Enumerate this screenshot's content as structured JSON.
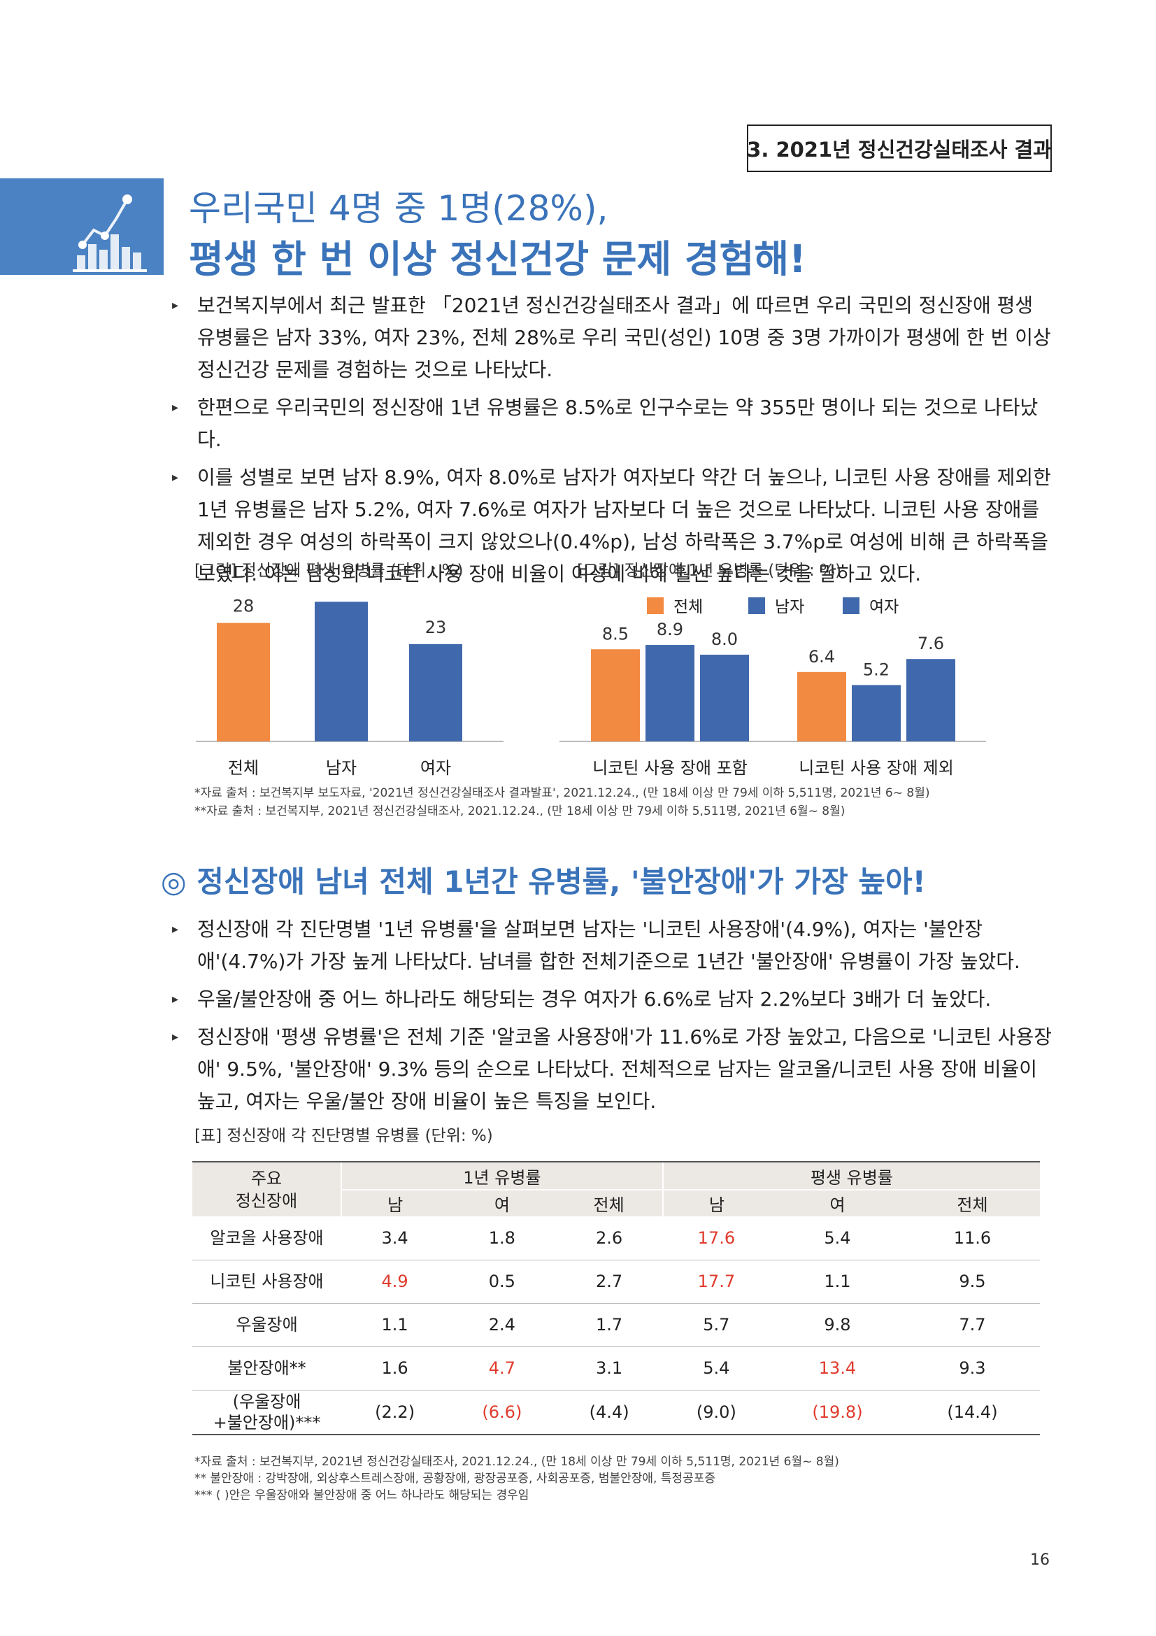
{
  "section_label": "3. 2021년 정신건강실태조사 결과",
  "title": {
    "line1": "우리국민 4명 중 1명(28%),",
    "line2": "평생 한 번 이상 정신건강 문제 경험해!"
  },
  "intro_bullets": [
    "보건복지부에서 최근 발표한 「2021년 정신건강실태조사 결과」에 따르면 우리 국민의 정신장애 평생 유병률은 남자 33%, 여자 23%, 전체 28%로 우리 국민(성인) 10명 중 3명 가까이가 평생에 한 번 이상 정신건강 문제를 경험하는 것으로 나타났다.",
    "한편으로 우리국민의 정신장애 1년 유병률은 8.5%로 인구수로는 약 355만 명이나 되는 것으로 나타났다.",
    "이를 성별로 보면 남자 8.9%, 여자 8.0%로 남자가 여자보다 약간 더 높으나, 니코틴 사용 장애를 제외한 1년 유병률은 남자 5.2%, 여자 7.6%로 여자가 남자보다 더 높은 것으로 나타났다. 니코틴 사용 장애를 제외한 경우 여성의 하락폭이 크지 않았으나(0.4%p), 남성 하락폭은 3.7%p로 여성에 비해 큰 하락폭을 보였다. 이는 남성의 니코틴 사용 장애 비율이 여성에 비해 훨씬 높다는 것을 말하고 있다."
  ],
  "chart_data": [
    {
      "type": "bar",
      "title": "[그림] 정신장애 평생 유병률 (단위 : %)",
      "categories": [
        "전체",
        "남자",
        "여자"
      ],
      "values": [
        28,
        33,
        23
      ],
      "colors": [
        "#f28a42",
        "#4069ad",
        "#4069ad"
      ]
    },
    {
      "type": "bar",
      "title": "[그림] 정신장애 1년 유병률 (단위 : %)",
      "categories": [
        "니코틴 사용 장애 포함",
        "니코틴 사용 장애 제외"
      ],
      "series": [
        {
          "name": "전체",
          "values": [
            8.5,
            6.4
          ],
          "color": "#f28a42"
        },
        {
          "name": "남자",
          "values": [
            8.9,
            5.2
          ],
          "color": "#4069ad"
        },
        {
          "name": "여자",
          "values": [
            8.0,
            7.6
          ],
          "color": "#4069ad"
        }
      ],
      "legend_placement": "top"
    }
  ],
  "chart_sources": [
    "*자료 출처 : 보건복지부 보도자료, '2021년 정신건강실태조사 결과발표', 2021.12.24., (만 18세 이상 만 79세 이하 5,511명, 2021년 6~ 8월)",
    "**자료 출처 : 보건복지부, 2021년 정신건강실태조사, 2021.12.24., (만 18세 이상 만 79세 이하 5,511명, 2021년 6월~ 8월)"
  ],
  "section2": {
    "symbol": "◎",
    "heading": "정신장애 남녀 전체 1년간 유병률, '불안장애'가 가장 높아!",
    "bullets": [
      "정신장애 각 진단명별 '1년 유병률'을 살펴보면 남자는 '니코틴 사용장애'(4.9%), 여자는 '불안장애'(4.7%)가 가장 높게 나타났다. 남녀를 합한 전체기준으로 1년간 '불안장애' 유병률이 가장 높았다.",
      "우울/불안장애 중 어느 하나라도 해당되는 경우 여자가 6.6%로 남자 2.2%보다 3배가 더 높았다.",
      "정신장애 '평생 유병률'은 전체 기준 '알코올 사용장애'가 11.6%로 가장 높았고, 다음으로 '니코틴 사용장애' 9.5%, '불안장애' 9.3% 등의 순으로 나타났다. 전체적으로 남자는 알코올/니코틴 사용 장애 비율이 높고, 여자는 우울/불안 장애 비율이 높은 특징을 보인다."
    ]
  },
  "table": {
    "caption": "[표] 정신장애 각 진단명별 유병률 (단위: %)",
    "corner_label": "주요\n정신장애",
    "group_headers": [
      "1년 유병률",
      "평생 유병률"
    ],
    "sub_headers": [
      "남",
      "여",
      "전체",
      "남",
      "여",
      "전체"
    ],
    "rows": [
      {
        "label": "알코올 사용장애",
        "values": [
          "3.4",
          "1.8",
          "2.6",
          "17.6",
          "5.4",
          "11.6"
        ],
        "highlight": [
          false,
          false,
          false,
          true,
          false,
          false
        ]
      },
      {
        "label": "니코틴 사용장애",
        "values": [
          "4.9",
          "0.5",
          "2.7",
          "17.7",
          "1.1",
          "9.5"
        ],
        "highlight": [
          true,
          false,
          false,
          true,
          false,
          false
        ]
      },
      {
        "label": "우울장애",
        "values": [
          "1.1",
          "2.4",
          "1.7",
          "5.7",
          "9.8",
          "7.7"
        ],
        "highlight": [
          false,
          false,
          false,
          false,
          false,
          false
        ]
      },
      {
        "label": "불안장애**",
        "values": [
          "1.6",
          "4.7",
          "3.1",
          "5.4",
          "13.4",
          "9.3"
        ],
        "highlight": [
          false,
          true,
          false,
          false,
          true,
          false
        ]
      },
      {
        "label": "(우울장애\n+불안장애)***",
        "values": [
          "(2.2)",
          "(6.6)",
          "(4.4)",
          "(9.0)",
          "(19.8)",
          "(14.4)"
        ],
        "highlight": [
          false,
          true,
          false,
          false,
          true,
          false
        ]
      }
    ],
    "highlight_color": "#e03b2d"
  },
  "table_notes": [
    "*자료 출처 : 보건복지부, 2021년 정신건강실태조사, 2021.12.24., (만 18세 이상 만 79세 이하 5,511명, 2021년 6월~ 8월)",
    "** 불안장애 : 강박장애, 외상후스트레스장애, 공황장애, 광장공포증, 사회공포증, 범불안장애, 특정공포증",
    "*** ( )안은 우울장애와 불안장애 중 어느 하나라도 해당되는 경우임"
  ],
  "page_number": "16",
  "icon": "chart-icon"
}
